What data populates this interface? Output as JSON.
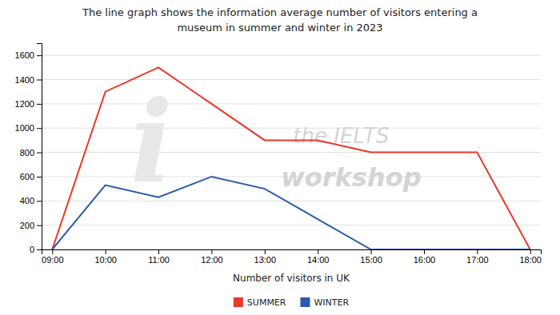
{
  "chart_data": {
    "type": "line",
    "title": "The line graph shows the information average number of visitors entering a\nmuseum in summer and winter in 2023",
    "xlabel": "Number of visitors in UK",
    "categories": [
      "09:00",
      "10:00",
      "11:00",
      "12:00",
      "13:00",
      "14:00",
      "15:00",
      "16:00",
      "17:00",
      "18:00"
    ],
    "series": [
      {
        "name": "SUMMER",
        "color": "#e8392a",
        "values": [
          0,
          1300,
          1500,
          1200,
          900,
          900,
          800,
          800,
          800,
          0
        ]
      },
      {
        "name": "WINTER",
        "color": "#2b5aab",
        "values": [
          0,
          530,
          430,
          600,
          500,
          250,
          0,
          0,
          0,
          0
        ]
      }
    ],
    "ylim": [
      0,
      1700
    ],
    "yticks": [
      0,
      200,
      400,
      600,
      800,
      1000,
      1200,
      1400,
      1600
    ],
    "grid": true,
    "legend": "bottom",
    "annotations": [
      "i",
      "the IELTS",
      "workshop"
    ]
  }
}
